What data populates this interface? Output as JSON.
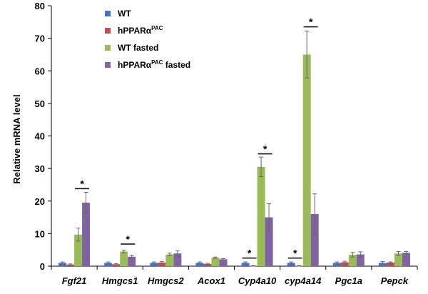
{
  "chart_data": {
    "type": "bar",
    "ylabel": "Relative mRNA level",
    "ylim": [
      0,
      80
    ],
    "yticks": [
      0,
      10,
      20,
      30,
      40,
      50,
      60,
      70,
      80
    ],
    "categories": [
      "Fgf21",
      "Hmgcs1",
      "Hmgcs2",
      "Acox1",
      "Cyp4a10",
      "cyp4a14",
      "Pgc1a",
      "Pepck"
    ],
    "series": [
      {
        "name": "WT",
        "name_main": "WT",
        "name_sup": "",
        "name_suffix": "",
        "color": "#4472c4",
        "values": [
          1.0,
          1.0,
          1.0,
          1.0,
          1.0,
          1.0,
          1.0,
          1.0
        ],
        "errors": [
          0.3,
          0.3,
          0.3,
          0.3,
          0.3,
          0.3,
          0.3,
          0.4
        ]
      },
      {
        "name": "hPPARαPAC",
        "name_main": "hPPARα",
        "name_sup": "PAC",
        "name_suffix": "",
        "color": "#c0504d",
        "values": [
          0.5,
          0.6,
          1.1,
          0.7,
          0.1,
          0.1,
          1.2,
          1.1
        ],
        "errors": [
          0.2,
          0.2,
          0.3,
          0.2,
          0.1,
          0.1,
          0.3,
          0.2
        ]
      },
      {
        "name": "WT fasted",
        "name_main": "WT fasted",
        "name_sup": "",
        "name_suffix": "",
        "color": "#9bbb59",
        "values": [
          9.7,
          4.5,
          3.6,
          2.6,
          30.5,
          65.0,
          3.5,
          3.9
        ],
        "errors": [
          2.0,
          0.4,
          0.4,
          0.2,
          3.0,
          7.2,
          0.7,
          0.6
        ]
      },
      {
        "name": "hPPARαPAC fasted",
        "name_main": "hPPARα",
        "name_sup": "PAC",
        "name_suffix": " fasted",
        "color": "#8064a2",
        "values": [
          19.5,
          2.9,
          3.9,
          2.1,
          15.0,
          16.0,
          3.6,
          4.1
        ],
        "errors": [
          3.2,
          0.5,
          0.8,
          0.2,
          4.2,
          6.2,
          0.8,
          0.4
        ]
      }
    ],
    "significance": [
      {
        "category": "Fgf21",
        "pair": [
          2,
          3
        ],
        "y": 23.8,
        "label": "*"
      },
      {
        "category": "Hmgcs1",
        "pair": [
          2,
          3
        ],
        "y": 6.8,
        "label": "*"
      },
      {
        "category": "Cyp4a10",
        "pair": [
          0,
          1
        ],
        "y": 2.5,
        "label": "*"
      },
      {
        "category": "Cyp4a10",
        "pair": [
          2,
          3
        ],
        "y": 34.5,
        "label": "*"
      },
      {
        "category": "cyp4a14",
        "pair": [
          0,
          1
        ],
        "y": 2.5,
        "label": "*"
      },
      {
        "category": "cyp4a14",
        "pair": [
          2,
          3
        ],
        "y": 73.5,
        "label": "*"
      }
    ],
    "legend_position": "top-left"
  }
}
